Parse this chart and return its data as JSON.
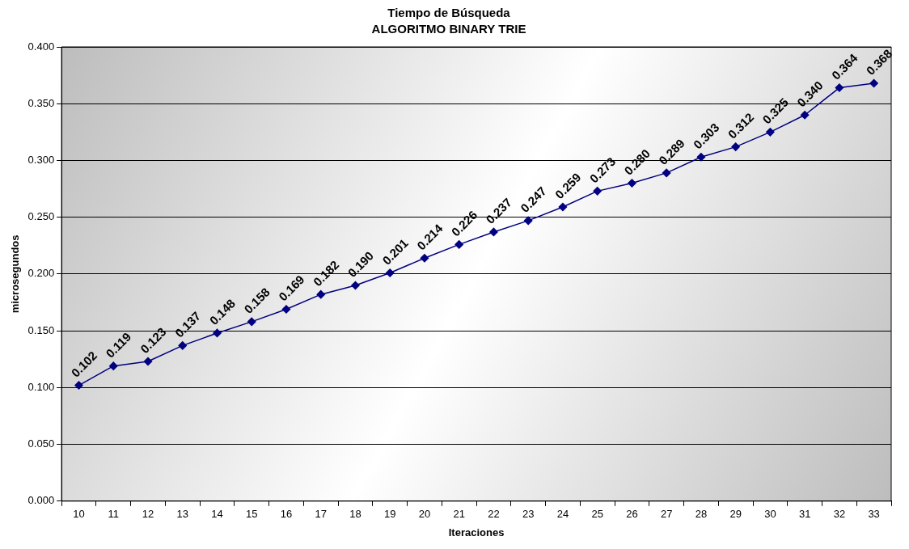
{
  "chart_data": {
    "type": "line",
    "title": "Tiempo de Búsqueda",
    "subtitle": "ALGORITMO BINARY TRIE",
    "xlabel": "Iteraciones",
    "ylabel": "microsegundos",
    "categories": [
      "10",
      "11",
      "12",
      "13",
      "14",
      "15",
      "16",
      "17",
      "18",
      "19",
      "20",
      "21",
      "22",
      "23",
      "24",
      "25",
      "26",
      "27",
      "28",
      "29",
      "30",
      "31",
      "32",
      "33"
    ],
    "series": [
      {
        "color": "#000080",
        "values": [
          0.102,
          0.119,
          0.123,
          0.137,
          0.148,
          0.158,
          0.169,
          0.182,
          0.19,
          0.201,
          0.214,
          0.226,
          0.237,
          0.247,
          0.259,
          0.273,
          0.28,
          0.289,
          0.303,
          0.312,
          0.325,
          0.34,
          0.364,
          0.368
        ],
        "value_labels": [
          "0.102",
          "0.119",
          "0.123",
          "0.137",
          "0.148",
          "0.158",
          "0.169",
          "0.182",
          "0.190",
          "0.201",
          "0.214",
          "0.226",
          "0.237",
          "0.247",
          "0.259",
          "0.273",
          "0.280",
          "0.289",
          "0.303",
          "0.312",
          "0.325",
          "0.340",
          "0.364",
          "0.368"
        ]
      }
    ],
    "ylim": [
      0,
      0.4
    ],
    "yticks": [
      {
        "value": 0,
        "label": "0.000"
      },
      {
        "value": 0.05,
        "label": "0.050"
      },
      {
        "value": 0.1,
        "label": "0.100"
      },
      {
        "value": 0.15,
        "label": "0.150"
      },
      {
        "value": 0.2,
        "label": "0.200"
      },
      {
        "value": 0.25,
        "label": "0.250"
      },
      {
        "value": 0.3,
        "label": "0.300"
      },
      {
        "value": 0.35,
        "label": "0.350"
      },
      {
        "value": 0.4,
        "label": "0.400"
      }
    ],
    "grid": "y",
    "legend": false,
    "marker": "diamond",
    "line_style": "solid"
  }
}
